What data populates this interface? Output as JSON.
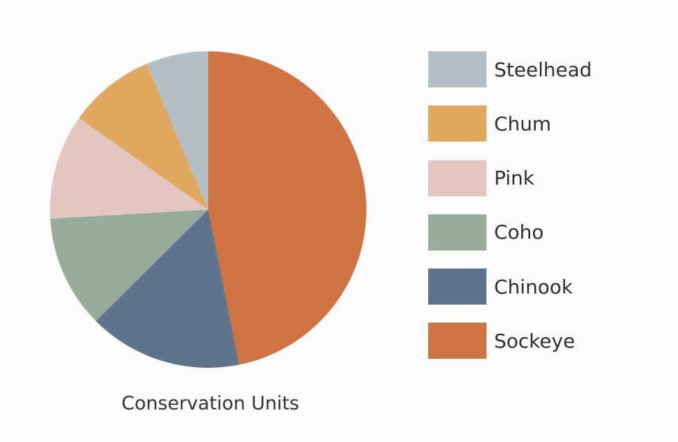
{
  "chart_data": {
    "type": "pie",
    "title": "Conservation Units",
    "slices": [
      {
        "label": "Sockeye",
        "value": 47.2,
        "color": "#cf7341"
      },
      {
        "label": "Chinook",
        "value": 15.8,
        "color": "#5e738c"
      },
      {
        "label": "Coho",
        "value": 11.6,
        "color": "#96ab99"
      },
      {
        "label": "Pink",
        "value": 10.8,
        "color": "#e3c6bf"
      },
      {
        "label": "Chum",
        "value": 8.9,
        "color": "#e2a75f"
      },
      {
        "label": "Steelhead",
        "value": 6.4,
        "color": "#b3bfc5"
      }
    ],
    "legend_order": [
      "Steelhead",
      "Chum",
      "Pink",
      "Coho",
      "Chinook",
      "Sockeye"
    ],
    "legend_position": "right",
    "start_angle": "12 o'clock, clockwise"
  }
}
